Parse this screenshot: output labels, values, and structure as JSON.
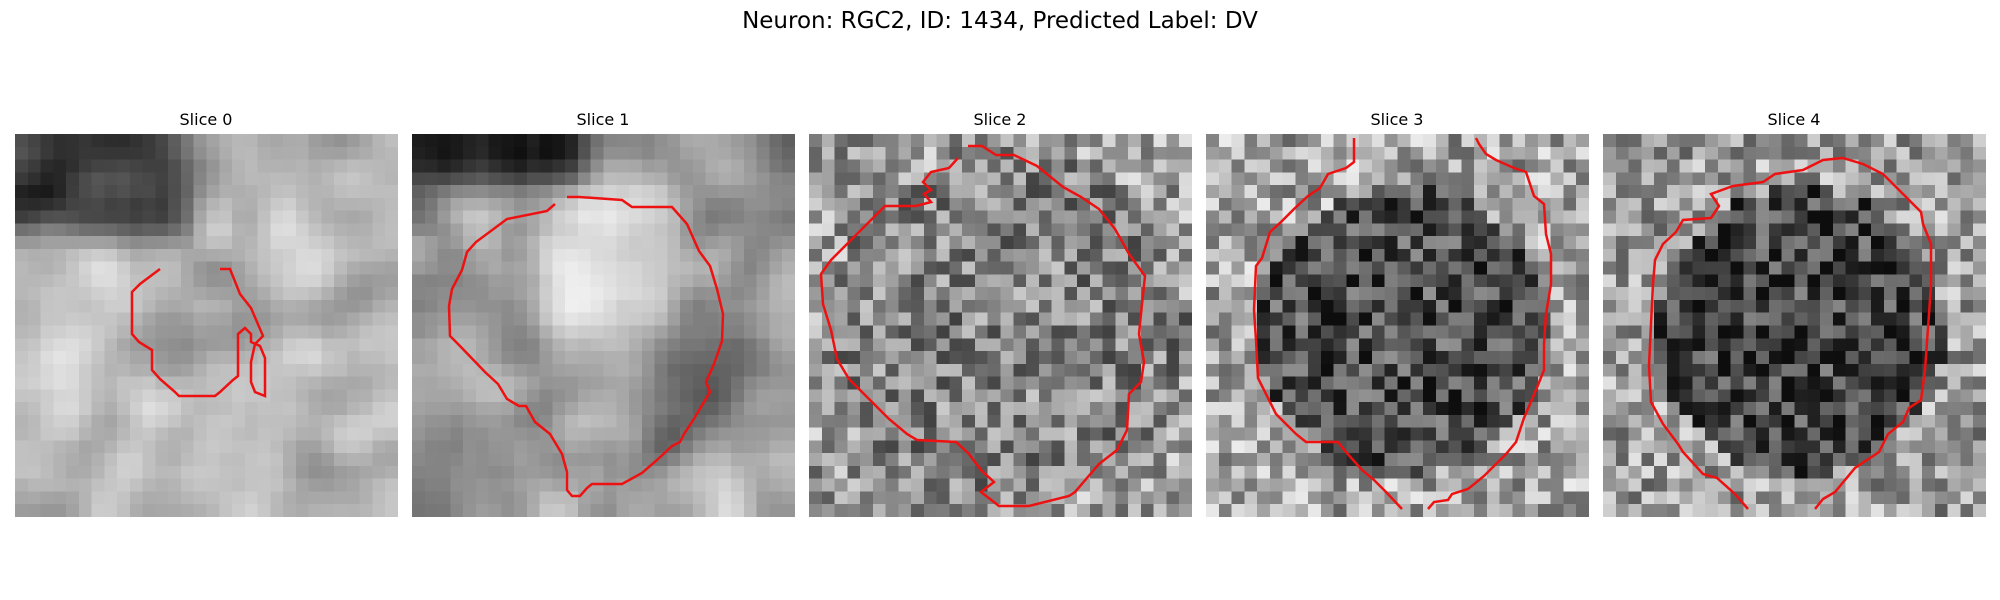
{
  "figure": {
    "title": "Neuron: RGC2, ID: 1434, Predicted Label: DV"
  },
  "panels": [
    {
      "title": "Slice 0",
      "image_style": "blurred grayscale, dark streak top-left, small ring center",
      "seed": 11,
      "base": 0.72,
      "blur": true,
      "contour_color": "#ee1111"
    },
    {
      "title": "Slice 1",
      "image_style": "blurred grayscale, bright blob top-center",
      "seed": 23,
      "base": 0.62,
      "blur": true,
      "contour_color": "#ee1111"
    },
    {
      "title": "Slice 2",
      "image_style": "noisy grayscale",
      "seed": 37,
      "base": 0.52,
      "blur": false,
      "contour_color": "#ee1111"
    },
    {
      "title": "Slice 3",
      "image_style": "noisy grayscale, darker center",
      "seed": 41,
      "base": 0.45,
      "blur": false,
      "contour_color": "#ee1111"
    },
    {
      "title": "Slice 4",
      "image_style": "noisy grayscale, dark center",
      "seed": 53,
      "base": 0.42,
      "blur": false,
      "contour_color": "#ee1111"
    }
  ]
}
